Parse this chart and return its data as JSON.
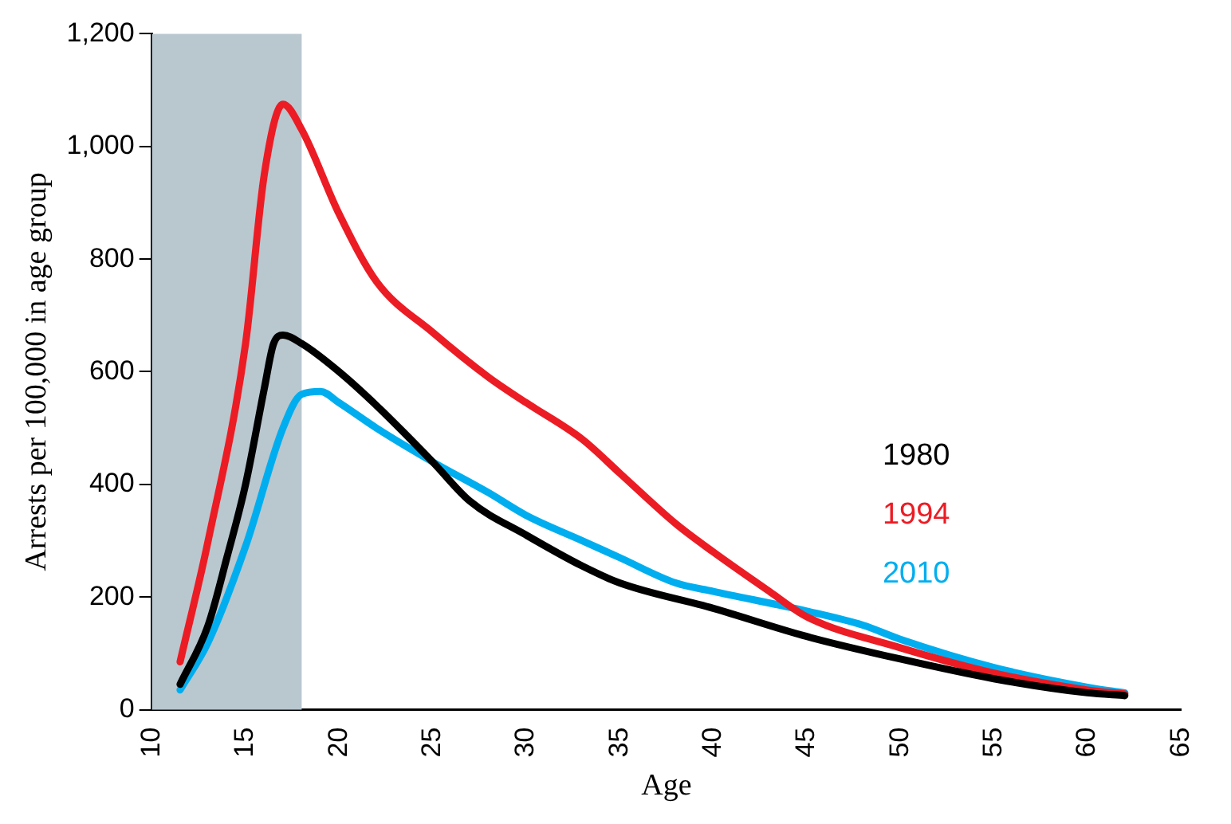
{
  "chart_data": {
    "type": "line",
    "xlabel": "Age",
    "ylabel": "Arrests per 100,000 in age group",
    "xlim": [
      10,
      65
    ],
    "xticks": [
      10,
      15,
      20,
      25,
      30,
      35,
      40,
      45,
      50,
      55,
      60,
      65
    ],
    "ylim": [
      0,
      1200
    ],
    "yticks": [
      0,
      200,
      400,
      600,
      800,
      {
        "value": 1000,
        "label": "1,000"
      },
      {
        "value": 1200,
        "label": "1,200"
      }
    ],
    "grid": false,
    "marker": "none",
    "line_style": "solid",
    "bands": [
      {
        "axis": "x",
        "from": 10,
        "to": 18,
        "color": "#b9c7cf"
      }
    ],
    "series": [
      {
        "name": "1980",
        "color": "#000000",
        "x": [
          11.5,
          13,
          14,
          15,
          16,
          16.5,
          17,
          18,
          20,
          22,
          25,
          27,
          30,
          33,
          35,
          40,
          45,
          50,
          55,
          60,
          62
        ],
        "values": [
          45,
          150,
          270,
          400,
          570,
          650,
          665,
          650,
          600,
          540,
          440,
          370,
          310,
          255,
          225,
          180,
          130,
          90,
          55,
          30,
          25
        ]
      },
      {
        "name": "1994",
        "color": "#ec1c24",
        "x": [
          11.5,
          13,
          15,
          16,
          17,
          18,
          20,
          22,
          25,
          28,
          30,
          33,
          35,
          38,
          40,
          43,
          45,
          50,
          55,
          60,
          62
        ],
        "values": [
          85,
          300,
          650,
          950,
          1075,
          1030,
          880,
          760,
          670,
          590,
          545,
          480,
          420,
          330,
          280,
          210,
          165,
          110,
          65,
          35,
          28
        ]
      },
      {
        "name": "2010",
        "color": "#00aeef",
        "x": [
          11.5,
          13,
          15,
          17,
          18,
          19,
          20,
          22,
          25,
          28,
          30,
          33,
          35,
          38,
          40,
          45,
          48,
          50,
          55,
          60,
          62
        ],
        "values": [
          35,
          120,
          290,
          500,
          560,
          565,
          545,
          500,
          440,
          385,
          345,
          300,
          270,
          225,
          210,
          175,
          150,
          125,
          75,
          40,
          30
        ]
      }
    ]
  }
}
